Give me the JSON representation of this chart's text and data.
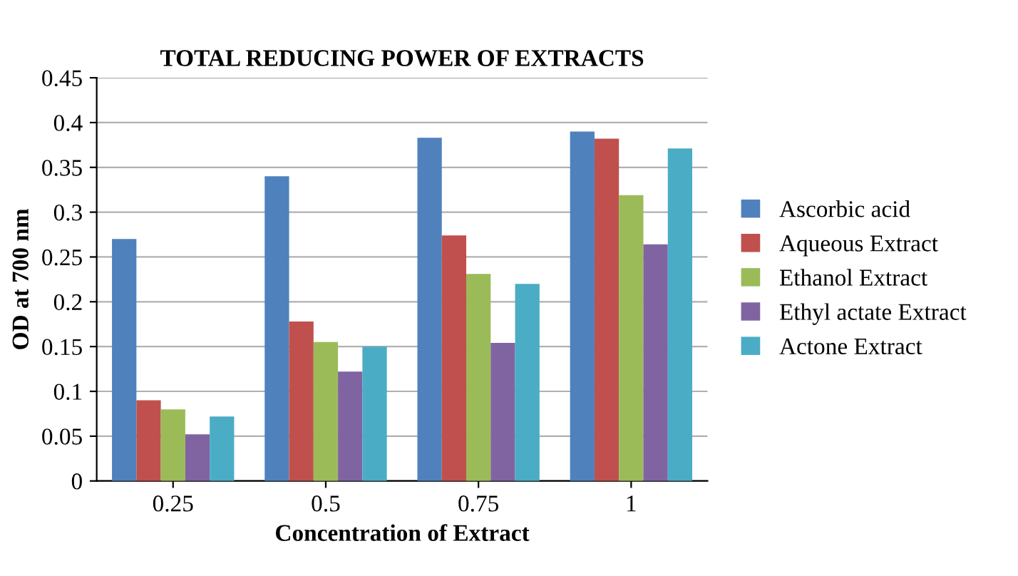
{
  "chart_data": {
    "type": "bar",
    "title": "TOTAL REDUCING POWER OF EXTRACTS",
    "xlabel": "Concentration of Extract",
    "ylabel": "OD at 700 nm",
    "categories": [
      "0.25",
      "0.5",
      "0.75",
      "1"
    ],
    "series": [
      {
        "name": "Ascorbic acid",
        "color": "#4f81bd",
        "values": [
          0.27,
          0.34,
          0.383,
          0.39
        ]
      },
      {
        "name": "Aqueous Extract",
        "color": "#c0504d",
        "values": [
          0.09,
          0.178,
          0.274,
          0.382
        ]
      },
      {
        "name": "Ethanol Extract",
        "color": "#9bbb59",
        "values": [
          0.08,
          0.155,
          0.231,
          0.319
        ]
      },
      {
        "name": "Ethyl actate Extract",
        "color": "#8064a2",
        "values": [
          0.052,
          0.122,
          0.154,
          0.264
        ]
      },
      {
        "name": "Actone Extract",
        "color": "#4bacc6",
        "values": [
          0.072,
          0.15,
          0.22,
          0.371
        ]
      }
    ],
    "ylim": [
      0,
      0.45
    ],
    "yticks": [
      0,
      0.05,
      0.1,
      0.15,
      0.2,
      0.25,
      0.3,
      0.35,
      0.4,
      0.45
    ],
    "grid": "y",
    "legend": "right"
  }
}
